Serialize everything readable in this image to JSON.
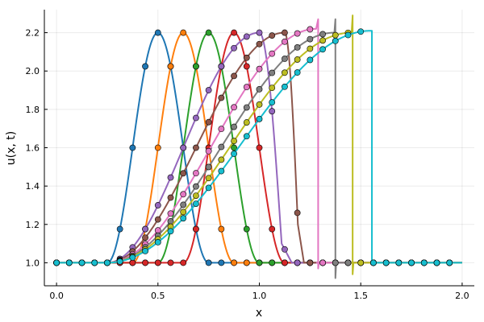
{
  "chart_data": {
    "type": "line",
    "title": "",
    "xlabel": "x",
    "ylabel": "u(x, t)",
    "xlim": [
      -0.06,
      2.06
    ],
    "ylim": [
      0.88,
      2.32
    ],
    "xticks": [
      0.0,
      0.5,
      1.0,
      1.5,
      2.0
    ],
    "xtick_labels": [
      "0.0",
      "0.5",
      "1.0",
      "1.5",
      "2.0"
    ],
    "yticks": [
      1.0,
      1.2,
      1.4,
      1.6,
      1.8,
      2.0,
      2.2
    ],
    "ytick_labels": [
      "1.0",
      "1.2",
      "1.4",
      "1.6",
      "1.8",
      "2.0",
      "2.2"
    ],
    "grid": true,
    "legend": "none",
    "markers": "circles on each line",
    "marker_x": [
      0.0,
      0.0625,
      0.125,
      0.1875,
      0.25,
      0.3125,
      0.375,
      0.4375,
      0.5,
      0.5625,
      0.625,
      0.6875,
      0.75,
      0.8125,
      0.875,
      0.9375,
      1.0,
      1.0625,
      1.125,
      1.1875,
      1.25,
      1.3125,
      1.375,
      1.4375,
      1.5,
      1.5625,
      1.625,
      1.6875,
      1.75,
      1.8125,
      1.875,
      1.9375
    ],
    "series": [
      {
        "color": "#1f77b4",
        "kind": "smooth",
        "center": 0.5,
        "width": 0.5
      },
      {
        "color": "#ff7f0e",
        "kind": "smooth",
        "center": 0.625,
        "width": 0.5
      },
      {
        "color": "#2ca02c",
        "kind": "smooth",
        "center": 0.75,
        "width": 0.5
      },
      {
        "color": "#d62728",
        "kind": "smooth",
        "center": 0.875,
        "width": 0.5
      },
      {
        "color": "#9467bd",
        "kind": "steep",
        "start": 0.25,
        "peak_x": 1.0,
        "peak_y": 2.2,
        "drop_end": 1.11,
        "tail_y": 1.1,
        "shock_x": 1.16
      },
      {
        "color": "#8c564b",
        "kind": "steep",
        "start": 0.25,
        "peak_x": 1.125,
        "peak_y": 2.2,
        "drop_end": 1.19,
        "tail_y": 1.2,
        "shock_x": 1.22
      },
      {
        "color": "#e377c2",
        "kind": "shock",
        "start": 0.25,
        "peak_x": 1.28,
        "peak_y": 2.22,
        "shock_x": 1.29,
        "spike_top": 2.27,
        "spike_bottom": 0.97
      },
      {
        "color": "#7f7f7f",
        "kind": "shock",
        "start": 0.25,
        "peak_x": 1.37,
        "peak_y": 2.2,
        "shock_x": 1.375,
        "spike_top": 2.27,
        "spike_bottom": 0.92
      },
      {
        "color": "#bcbd22",
        "kind": "shock",
        "start": 0.25,
        "peak_x": 1.455,
        "peak_y": 2.2,
        "shock_x": 1.46,
        "spike_top": 2.29,
        "spike_bottom": 0.94
      },
      {
        "color": "#17becf",
        "kind": "shock",
        "start": 0.25,
        "peak_x": 1.55,
        "peak_y": 2.21,
        "shock_x": 1.555,
        "spike_top": 2.21,
        "spike_bottom": 1.0
      }
    ]
  }
}
